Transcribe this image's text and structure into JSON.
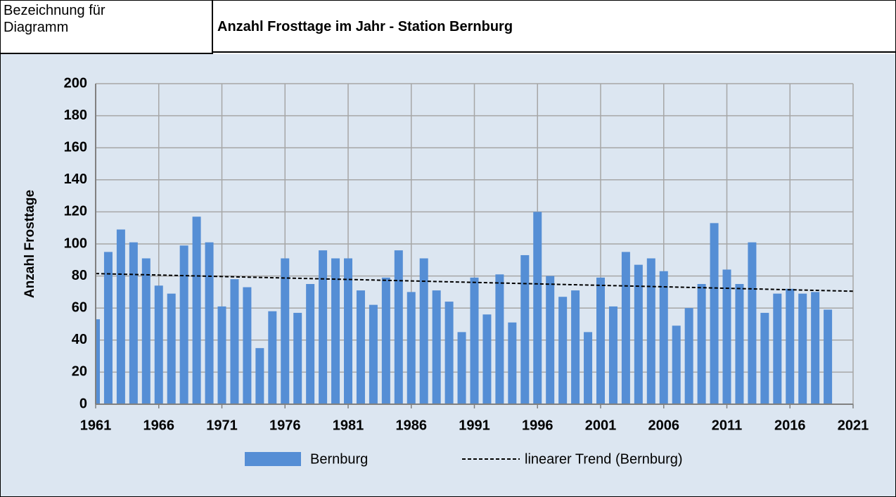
{
  "header": {
    "label": "Bezeichnung für Diagramm"
  },
  "chart_data": {
    "type": "bar",
    "title": "Anzahl Frosttage im Jahr - Station Bernburg",
    "ylabel": "Anzahl Frosttage",
    "x": [
      1961,
      1962,
      1963,
      1964,
      1965,
      1966,
      1967,
      1968,
      1969,
      1970,
      1971,
      1972,
      1973,
      1974,
      1975,
      1976,
      1977,
      1978,
      1979,
      1980,
      1981,
      1982,
      1983,
      1984,
      1985,
      1986,
      1987,
      1988,
      1989,
      1990,
      1991,
      1992,
      1993,
      1994,
      1995,
      1996,
      1997,
      1998,
      1999,
      2000,
      2001,
      2002,
      2003,
      2004,
      2005,
      2006,
      2007,
      2008,
      2009,
      2010,
      2011,
      2012,
      2013,
      2014,
      2015,
      2016,
      2017,
      2018,
      2019
    ],
    "series": [
      {
        "name": "Bernburg",
        "color": "#558ed5",
        "values": [
          53,
          95,
          109,
          101,
          91,
          74,
          69,
          99,
          117,
          101,
          61,
          78,
          73,
          35,
          58,
          91,
          57,
          75,
          96,
          91,
          91,
          71,
          62,
          79,
          96,
          70,
          91,
          71,
          64,
          45,
          79,
          56,
          81,
          51,
          93,
          120,
          80,
          67,
          71,
          45,
          79,
          61,
          95,
          87,
          91,
          83,
          49,
          60,
          75,
          113,
          84,
          75,
          101,
          57,
          69,
          72,
          69,
          70,
          59
        ]
      },
      {
        "name": "linearer Trend (Bernburg)",
        "color": "#000000",
        "type": "line",
        "dashed": true,
        "x": [
          1961,
          2021
        ],
        "values": [
          81.5,
          70.5
        ]
      }
    ],
    "xlim": [
      1961,
      2021
    ],
    "xticks": [
      1961,
      1966,
      1971,
      1976,
      1981,
      1986,
      1991,
      1996,
      2001,
      2006,
      2011,
      2016,
      2021
    ],
    "ylim": [
      0,
      200
    ],
    "yticks": [
      0,
      20,
      40,
      60,
      80,
      100,
      120,
      140,
      160,
      180,
      200
    ],
    "grid": true,
    "legend": "bottom"
  }
}
